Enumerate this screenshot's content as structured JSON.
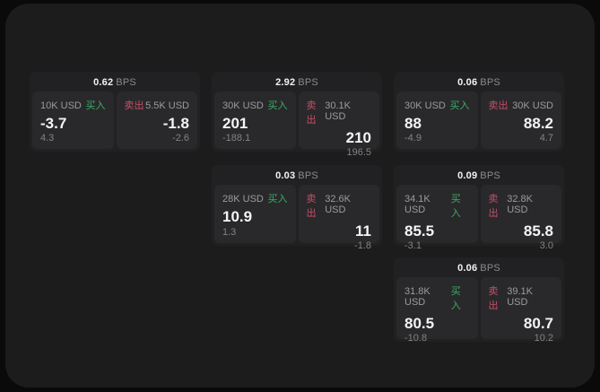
{
  "labels": {
    "buy": "买入",
    "sell": "卖出",
    "bps_suffix": "BPS"
  },
  "colors": {
    "buy_green": "#3cab66",
    "sell_red": "#c2506a",
    "panel_bg": "#1c1c1d",
    "card_bg": "#212123",
    "tile_bg": "#29292b",
    "page_bg": "#0a0a0b"
  },
  "cards": [
    {
      "bps": "0.62",
      "buy": {
        "size": "10K USD",
        "price": "-3.7",
        "delta": "4.3"
      },
      "sell": {
        "size": "5.5K USD",
        "price": "-1.8",
        "delta": "-2.6"
      }
    },
    {
      "bps": "2.92",
      "buy": {
        "size": "30K USD",
        "price": "201",
        "delta": "-188.1"
      },
      "sell": {
        "size": "30.1K USD",
        "price": "210",
        "delta": "196.5"
      }
    },
    {
      "bps": "0.06",
      "buy": {
        "size": "30K USD",
        "price": "88",
        "delta": "-4.9"
      },
      "sell": {
        "size": "30K USD",
        "price": "88.2",
        "delta": "4.7"
      }
    },
    {
      "bps": "0.03",
      "buy": {
        "size": "28K USD",
        "price": "10.9",
        "delta": "1.3"
      },
      "sell": {
        "size": "32.6K USD",
        "price": "11",
        "delta": "-1.8"
      }
    },
    {
      "bps": "0.09",
      "buy": {
        "size": "34.1K USD",
        "price": "85.5",
        "delta": "-3.1"
      },
      "sell": {
        "size": "32.8K USD",
        "price": "85.8",
        "delta": "3.0"
      }
    },
    {
      "bps": "0.06",
      "buy": {
        "size": "31.8K USD",
        "price": "80.5",
        "delta": "-10.8"
      },
      "sell": {
        "size": "39.1K USD",
        "price": "80.7",
        "delta": "10.2"
      }
    }
  ]
}
